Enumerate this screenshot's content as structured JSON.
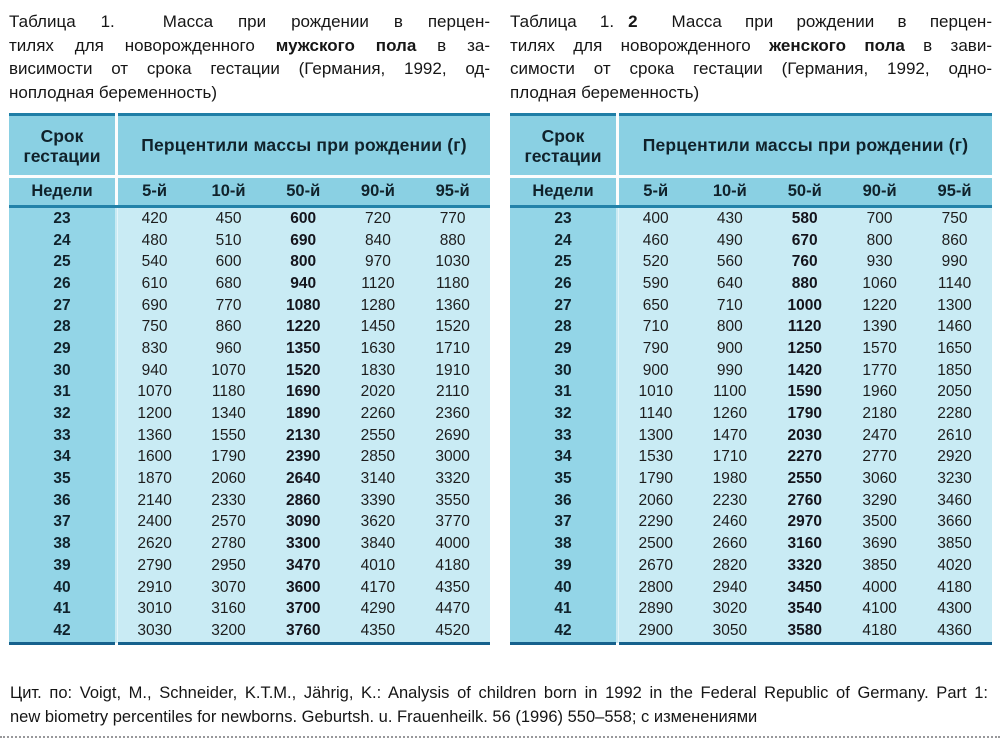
{
  "colors": {
    "header_blue": "#8ad0e3",
    "week_column_blue": "#93d5e7",
    "body_blue": "#c9ebf4",
    "divider_teal": "#2282a9",
    "top_border_teal": "#1f7ea6",
    "bottom_border_navy": "#16618d"
  },
  "tables": [
    {
      "caption_lines": [
        [
          {
            "t": "Таблица 1.",
            "cls": "lbl"
          },
          {
            "t": "",
            "cls": "num"
          },
          {
            "t": "Масса при рождении в перцен-"
          }
        ],
        [
          {
            "t": "тилях для новорожденного "
          },
          {
            "t": "мужского пола",
            "cls": "b"
          },
          {
            "t": " в за-"
          }
        ],
        [
          {
            "t": "висимости от срока гестации (Германия, 1992, од-"
          }
        ],
        [
          {
            "t": "ноплодная беременность)"
          }
        ]
      ],
      "header": {
        "period": "Срок гестации",
        "group": "Перцентили массы при рождении (г)",
        "weeks": "Недели",
        "percentiles": [
          "5-й",
          "10-й",
          "50-й",
          "90-й",
          "95-й"
        ]
      },
      "rows": [
        [
          23,
          420,
          450,
          600,
          720,
          770
        ],
        [
          24,
          480,
          510,
          690,
          840,
          880
        ],
        [
          25,
          540,
          600,
          800,
          970,
          1030
        ],
        [
          26,
          610,
          680,
          940,
          1120,
          1180
        ],
        [
          27,
          690,
          770,
          1080,
          1280,
          1360
        ],
        [
          28,
          750,
          860,
          1220,
          1450,
          1520
        ],
        [
          29,
          830,
          960,
          1350,
          1630,
          1710
        ],
        [
          30,
          940,
          1070,
          1520,
          1830,
          1910
        ],
        [
          31,
          1070,
          1180,
          1690,
          2020,
          2110
        ],
        [
          32,
          1200,
          1340,
          1890,
          2260,
          2360
        ],
        [
          33,
          1360,
          1550,
          2130,
          2550,
          2690
        ],
        [
          34,
          1600,
          1790,
          2390,
          2850,
          3000
        ],
        [
          35,
          1870,
          2060,
          2640,
          3140,
          3320
        ],
        [
          36,
          2140,
          2330,
          2860,
          3390,
          3550
        ],
        [
          37,
          2400,
          2570,
          3090,
          3620,
          3770
        ],
        [
          38,
          2620,
          2780,
          3300,
          3840,
          4000
        ],
        [
          39,
          2790,
          2950,
          3470,
          4010,
          4180
        ],
        [
          40,
          2910,
          3070,
          3600,
          4170,
          4350
        ],
        [
          41,
          3010,
          3160,
          3700,
          4290,
          4470
        ],
        [
          42,
          3030,
          3200,
          3760,
          4350,
          4520
        ]
      ]
    },
    {
      "caption_lines": [
        [
          {
            "t": "Таблица 1.",
            "cls": "lbl"
          },
          {
            "t": "2",
            "cls": "num"
          },
          {
            "t": "Масса при рождении в перцен-"
          }
        ],
        [
          {
            "t": "тилях для новорожденного "
          },
          {
            "t": "женского пола",
            "cls": "b"
          },
          {
            "t": " в зави-"
          }
        ],
        [
          {
            "t": "симости от срока гестации (Германия, 1992, одно-"
          }
        ],
        [
          {
            "t": "плодная беременность)"
          }
        ]
      ],
      "header": {
        "period": "Срок гестации",
        "group": "Перцентили массы при рождении (г)",
        "weeks": "Недели",
        "percentiles": [
          "5-й",
          "10-й",
          "50-й",
          "90-й",
          "95-й"
        ]
      },
      "rows": [
        [
          23,
          400,
          430,
          580,
          700,
          750
        ],
        [
          24,
          460,
          490,
          670,
          800,
          860
        ],
        [
          25,
          520,
          560,
          760,
          930,
          990
        ],
        [
          26,
          590,
          640,
          880,
          1060,
          1140
        ],
        [
          27,
          650,
          710,
          1000,
          1220,
          1300
        ],
        [
          28,
          710,
          800,
          1120,
          1390,
          1460
        ],
        [
          29,
          790,
          900,
          1250,
          1570,
          1650
        ],
        [
          30,
          900,
          990,
          1420,
          1770,
          1850
        ],
        [
          31,
          1010,
          1100,
          1590,
          1960,
          2050
        ],
        [
          32,
          1140,
          1260,
          1790,
          2180,
          2280
        ],
        [
          33,
          1300,
          1470,
          2030,
          2470,
          2610
        ],
        [
          34,
          1530,
          1710,
          2270,
          2770,
          2920
        ],
        [
          35,
          1790,
          1980,
          2550,
          3060,
          3230
        ],
        [
          36,
          2060,
          2230,
          2760,
          3290,
          3460
        ],
        [
          37,
          2290,
          2460,
          2970,
          3500,
          3660
        ],
        [
          38,
          2500,
          2660,
          3160,
          3690,
          3850
        ],
        [
          39,
          2670,
          2820,
          3320,
          3850,
          4020
        ],
        [
          40,
          2800,
          2940,
          3450,
          4000,
          4180
        ],
        [
          41,
          2890,
          3020,
          3540,
          4100,
          4300
        ],
        [
          42,
          2900,
          3050,
          3580,
          4180,
          4360
        ]
      ]
    }
  ],
  "footer_lines": [
    [
      {
        "t": "Цит. по: Voigt, M., Schneider, K.T.M., Jährig, K.: Analysis of children born in 1992 in the Federal Republic of Germany. Part 1:"
      }
    ],
    [
      {
        "t": "new biometry percentiles for newborns. Geburtsh. u. Frauenheilk. 56 (1996) 550–558; с изменениями"
      }
    ]
  ]
}
